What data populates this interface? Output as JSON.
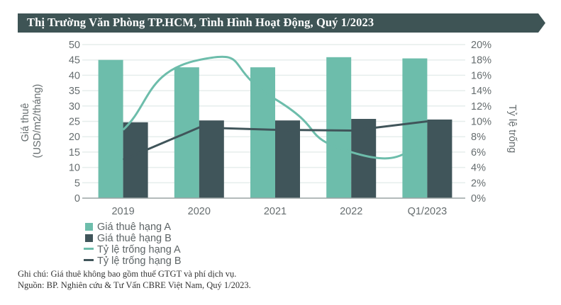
{
  "header": {
    "title": "Thị Trường Văn Phòng TP.HCM, Tình Hình Hoạt Động, Quý 1/2023"
  },
  "colors": {
    "banner": "#3e5455",
    "grade_a": "#6dbdab",
    "grade_b": "#40555a",
    "grid": "#e6eeec",
    "axis": "#9aa3a3"
  },
  "chart_data": {
    "type": "bar",
    "title": "Thị Trường Văn Phòng TP.HCM, Tình Hình Hoạt Động, Quý 1/2023",
    "categories": [
      "2019",
      "2020",
      "2021",
      "2022",
      "Q1/2023"
    ],
    "series": [
      {
        "name": "Giá thuê hạng A",
        "type": "bar",
        "axis": "left",
        "values": [
          45.0,
          42.6,
          42.6,
          45.9,
          45.5
        ]
      },
      {
        "name": "Giá thuê hạng B",
        "type": "bar",
        "axis": "left",
        "values": [
          24.7,
          25.3,
          25.3,
          25.8,
          25.6
        ]
      },
      {
        "name": "Tỷ lệ trống hạng A",
        "type": "line",
        "smooth": true,
        "axis": "right",
        "values": [
          8.9,
          18.0,
          12.9,
          6.0,
          6.8
        ]
      },
      {
        "name": "Tỷ lệ trống hạng B",
        "type": "line",
        "axis": "right",
        "values": [
          5.0,
          9.2,
          8.9,
          8.8,
          10.0
        ]
      }
    ],
    "ylabel": "Giá thuê (USD/m2/tháng)",
    "ylabel_lines": [
      "Giá thuê",
      "(USD/m2/tháng)"
    ],
    "y2label": "Tỷ lệ trống",
    "ylim": [
      0,
      50
    ],
    "y2lim": [
      0,
      20
    ],
    "yticks": [
      "0",
      "5",
      "10",
      "15",
      "20",
      "25",
      "30",
      "35",
      "40",
      "45",
      "50"
    ],
    "y2ticks": [
      "0%",
      "2%",
      "4%",
      "6%",
      "8%",
      "10%",
      "12%",
      "14%",
      "16%",
      "18%",
      "20%"
    ],
    "grid": true,
    "legend_position": "bottom-left"
  },
  "legend": {
    "items": [
      {
        "label": "Giá thuê hạng A"
      },
      {
        "label": "Giá thuê hạng B"
      },
      {
        "label": "Tỷ lệ trống hạng A"
      },
      {
        "label": "Tỷ lệ trống hạng B"
      }
    ]
  },
  "notes": {
    "note": "Ghi chú: Giá thuê không bao gồm thuế GTGT và phí dịch vụ.",
    "source": "Nguồn: BP. Nghiên cứu & Tư Vấn CBRE Việt Nam, Quý 1/2023."
  }
}
